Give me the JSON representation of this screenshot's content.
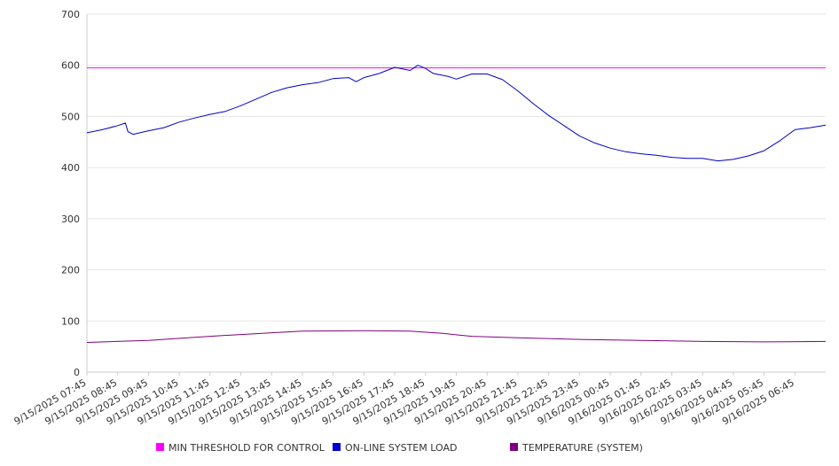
{
  "chart_data": {
    "type": "line",
    "title": "",
    "xlabel": "",
    "ylabel": "",
    "ylim": [
      0,
      700
    ],
    "yticks": [
      0,
      100,
      200,
      300,
      400,
      500,
      600,
      700
    ],
    "xticks": [
      "9/15/2025 07:45",
      "9/15/2025 08:45",
      "9/15/2025 09:45",
      "9/15/2025 10:45",
      "9/15/2025 11:45",
      "9/15/2025 12:45",
      "9/15/2025 13:45",
      "9/15/2025 14:45",
      "9/15/2025 15:45",
      "9/15/2025 16:45",
      "9/15/2025 17:45",
      "9/15/2025 18:45",
      "9/15/2025 19:45",
      "9/15/2025 20:45",
      "9/15/2025 21:45",
      "9/15/2025 22:45",
      "9/15/2025 23:45",
      "9/16/2025 00:45",
      "9/16/2025 01:45",
      "9/16/2025 02:45",
      "9/16/2025 03:45",
      "9/16/2025 04:45",
      "9/16/2025 05:45",
      "9/16/2025 06:45"
    ],
    "x_end": "9/16/2025 07:45",
    "grid": true,
    "legend_position": "bottom",
    "series": [
      {
        "name": "MIN THRESHOLD FOR CONTROL",
        "color": "#ff00ff",
        "points": [
          [
            "9/15/2025 07:45",
            595
          ],
          [
            "9/16/2025 07:45",
            595
          ]
        ]
      },
      {
        "name": "ON-LINE SYSTEM LOAD",
        "color": "#0000cc",
        "points": [
          [
            "9/15/2025 07:45",
            468
          ],
          [
            "9/15/2025 08:15",
            474
          ],
          [
            "9/15/2025 08:45",
            482
          ],
          [
            "9/15/2025 09:00",
            487
          ],
          [
            "9/15/2025 09:05",
            470
          ],
          [
            "9/15/2025 09:15",
            465
          ],
          [
            "9/15/2025 09:45",
            472
          ],
          [
            "9/15/2025 10:15",
            478
          ],
          [
            "9/15/2025 10:45",
            489
          ],
          [
            "9/15/2025 11:15",
            497
          ],
          [
            "9/15/2025 11:45",
            504
          ],
          [
            "9/15/2025 12:15",
            510
          ],
          [
            "9/15/2025 12:45",
            521
          ],
          [
            "9/15/2025 13:15",
            534
          ],
          [
            "9/15/2025 13:45",
            547
          ],
          [
            "9/15/2025 14:15",
            556
          ],
          [
            "9/15/2025 14:45",
            562
          ],
          [
            "9/15/2025 15:15",
            566
          ],
          [
            "9/15/2025 15:45",
            574
          ],
          [
            "9/15/2025 16:15",
            576
          ],
          [
            "9/15/2025 16:30",
            568
          ],
          [
            "9/15/2025 16:45",
            576
          ],
          [
            "9/15/2025 17:15",
            584
          ],
          [
            "9/15/2025 17:45",
            596
          ],
          [
            "9/15/2025 18:15",
            590
          ],
          [
            "9/15/2025 18:30",
            600
          ],
          [
            "9/15/2025 18:45",
            594
          ],
          [
            "9/15/2025 19:00",
            584
          ],
          [
            "9/15/2025 19:30",
            578
          ],
          [
            "9/15/2025 19:45",
            573
          ],
          [
            "9/15/2025 20:15",
            583
          ],
          [
            "9/15/2025 20:45",
            583
          ],
          [
            "9/15/2025 21:15",
            572
          ],
          [
            "9/15/2025 21:45",
            550
          ],
          [
            "9/15/2025 22:15",
            525
          ],
          [
            "9/15/2025 22:45",
            502
          ],
          [
            "9/15/2025 23:15",
            482
          ],
          [
            "9/15/2025 23:45",
            462
          ],
          [
            "9/16/2025 00:15",
            448
          ],
          [
            "9/16/2025 00:45",
            438
          ],
          [
            "9/16/2025 01:15",
            431
          ],
          [
            "9/16/2025 01:45",
            427
          ],
          [
            "9/16/2025 02:15",
            424
          ],
          [
            "9/16/2025 02:45",
            420
          ],
          [
            "9/16/2025 03:15",
            418
          ],
          [
            "9/16/2025 03:45",
            418
          ],
          [
            "9/16/2025 04:15",
            413
          ],
          [
            "9/16/2025 04:45",
            416
          ],
          [
            "9/16/2025 05:15",
            423
          ],
          [
            "9/16/2025 05:45",
            433
          ],
          [
            "9/16/2025 06:15",
            452
          ],
          [
            "9/16/2025 06:45",
            474
          ],
          [
            "9/16/2025 07:15",
            478
          ],
          [
            "9/16/2025 07:45",
            483
          ]
        ]
      },
      {
        "name": "TEMPERATURE (SYSTEM)",
        "color": "#800080",
        "points": [
          [
            "9/15/2025 07:45",
            58
          ],
          [
            "9/15/2025 09:45",
            62
          ],
          [
            "9/15/2025 11:45",
            70
          ],
          [
            "9/15/2025 13:45",
            77
          ],
          [
            "9/15/2025 14:45",
            80
          ],
          [
            "9/15/2025 16:45",
            81
          ],
          [
            "9/15/2025 18:15",
            80
          ],
          [
            "9/15/2025 19:15",
            76
          ],
          [
            "9/15/2025 20:15",
            70
          ],
          [
            "9/15/2025 21:45",
            67
          ],
          [
            "9/15/2025 23:45",
            64
          ],
          [
            "9/16/2025 01:45",
            62
          ],
          [
            "9/16/2025 03:45",
            60
          ],
          [
            "9/16/2025 05:45",
            59
          ],
          [
            "9/16/2025 07:45",
            60
          ]
        ]
      }
    ]
  }
}
